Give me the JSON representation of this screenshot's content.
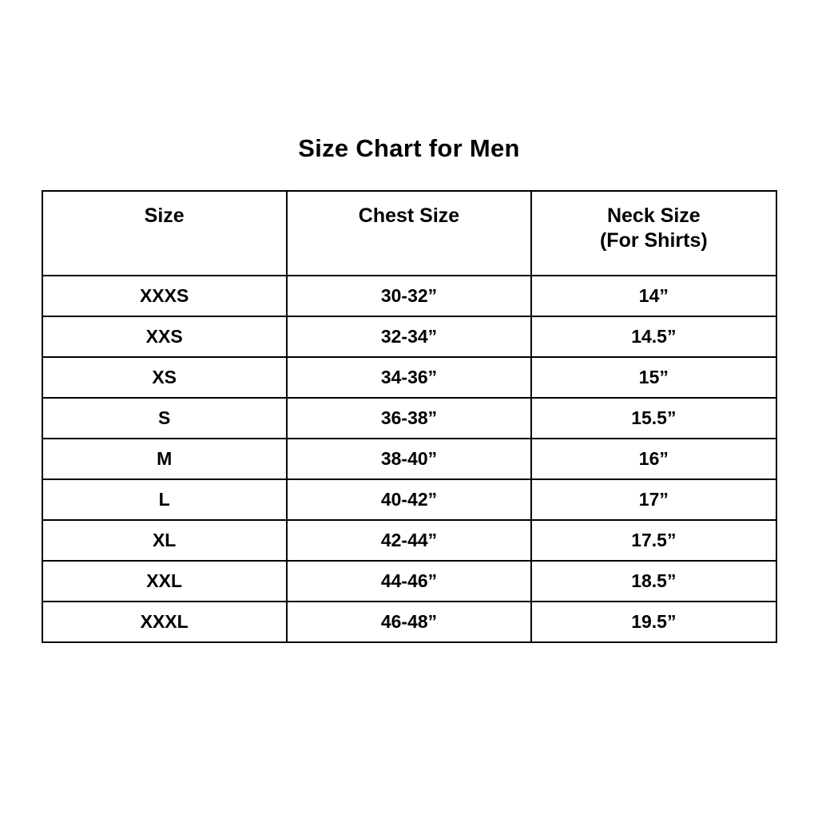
{
  "title": "Size Chart for Men",
  "colors": {
    "background": "#ffffff",
    "text": "#000000",
    "border": "#000000"
  },
  "table": {
    "headers": [
      {
        "line1": "Size",
        "line2": ""
      },
      {
        "line1": "Chest Size",
        "line2": ""
      },
      {
        "line1": "Neck Size",
        "line2": "(For Shirts)"
      }
    ],
    "rows": [
      {
        "size": "XXXS",
        "chest": "30-32”",
        "neck": "14”"
      },
      {
        "size": "XXS",
        "chest": "32-34”",
        "neck": "14.5”"
      },
      {
        "size": "XS",
        "chest": "34-36”",
        "neck": "15”"
      },
      {
        "size": "S",
        "chest": "36-38”",
        "neck": "15.5”"
      },
      {
        "size": "M",
        "chest": "38-40”",
        "neck": "16”"
      },
      {
        "size": "L",
        "chest": "40-42”",
        "neck": "17”"
      },
      {
        "size": "XL",
        "chest": "42-44”",
        "neck": "17.5”"
      },
      {
        "size": "XXL",
        "chest": "44-46”",
        "neck": "18.5”"
      },
      {
        "size": "XXXL",
        "chest": "46-48”",
        "neck": "19.5”"
      }
    ]
  },
  "chart_data": {
    "type": "table",
    "title": "Size Chart for Men",
    "columns": [
      "Size",
      "Chest Size",
      "Neck Size (For Shirts)"
    ],
    "rows": [
      [
        "XXXS",
        "30-32”",
        "14”"
      ],
      [
        "XXS",
        "32-34”",
        "14.5”"
      ],
      [
        "XS",
        "34-36”",
        "15”"
      ],
      [
        "S",
        "36-38”",
        "15.5”"
      ],
      [
        "M",
        "38-40”",
        "16”"
      ],
      [
        "L",
        "40-42”",
        "17”"
      ],
      [
        "XL",
        "42-44”",
        "17.5”"
      ],
      [
        "XXL",
        "44-46”",
        "18.5”"
      ],
      [
        "XXXL",
        "46-48”",
        "19.5”"
      ]
    ]
  }
}
